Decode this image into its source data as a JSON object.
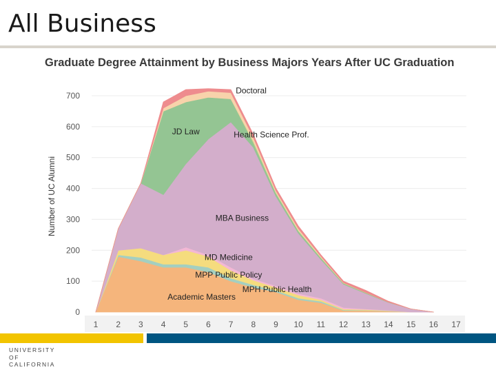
{
  "slide": {
    "title": "All Business",
    "logo": {
      "line1": "UNIVERSITY",
      "line2": "OF",
      "line3": "CALIFORNIA"
    },
    "colors": {
      "gold": "#f2c400",
      "blue": "#005581",
      "rule": "#d8d4cc"
    }
  },
  "chart_data": {
    "type": "area",
    "stacked": true,
    "title": "Graduate Degree Attainment by Business Majors Years After UC Graduation",
    "xlabel": "",
    "ylabel": "Number of UC Alumni",
    "x": [
      1,
      2,
      3,
      4,
      5,
      6,
      7,
      8,
      9,
      10,
      11,
      12,
      13,
      14,
      15,
      16,
      17
    ],
    "xlim": [
      1,
      17
    ],
    "ylim": [
      0,
      700
    ],
    "yticks": [
      0,
      100,
      200,
      300,
      400,
      500,
      600,
      700
    ],
    "grid": true,
    "series": [
      {
        "name": "Academic Masters",
        "color": "#f5b57c",
        "values": [
          0,
          180,
          165,
          145,
          145,
          130,
          100,
          80,
          65,
          40,
          30,
          5,
          5,
          3,
          0,
          0,
          null
        ]
      },
      {
        "name": "MPH Public Health",
        "color": "#a4cfc0",
        "values": [
          0,
          5,
          12,
          10,
          10,
          15,
          10,
          8,
          5,
          5,
          5,
          2,
          1,
          1,
          0,
          0,
          null
        ]
      },
      {
        "name": "MPP Public Policy",
        "color": "#f5dc7e",
        "values": [
          0,
          15,
          30,
          30,
          45,
          35,
          25,
          15,
          10,
          10,
          5,
          3,
          2,
          1,
          0,
          0,
          null
        ]
      },
      {
        "name": "MD Medicine",
        "color": "#f3b8d4",
        "values": [
          0,
          0,
          0,
          0,
          10,
          5,
          10,
          5,
          5,
          5,
          5,
          5,
          2,
          1,
          0,
          0,
          null
        ]
      },
      {
        "name": "MBA Business",
        "color": "#d3aecb",
        "values": [
          0,
          70,
          210,
          195,
          270,
          375,
          470,
          425,
          290,
          195,
          125,
          75,
          50,
          25,
          10,
          0,
          null
        ]
      },
      {
        "name": "JD Law",
        "color": "#94c593",
        "values": [
          0,
          0,
          0,
          270,
          200,
          135,
          75,
          15,
          10,
          7,
          5,
          3,
          2,
          1,
          0,
          0,
          null
        ]
      },
      {
        "name": "Health Science Prof.",
        "color": "#c5d48a",
        "values": [
          0,
          0,
          0,
          0,
          0,
          0,
          0,
          5,
          2,
          2,
          2,
          1,
          1,
          0,
          0,
          0,
          null
        ]
      },
      {
        "name": "Doctoral (light)",
        "color": "#f8d3ab",
        "values": [
          0,
          0,
          0,
          10,
          20,
          20,
          20,
          12,
          6,
          6,
          3,
          1,
          0,
          0,
          0,
          0,
          null
        ]
      },
      {
        "name": "Doctoral",
        "color": "#ee8c8e",
        "values": [
          0,
          0,
          0,
          20,
          20,
          8,
          10,
          10,
          8,
          8,
          5,
          5,
          7,
          3,
          0,
          0,
          null
        ]
      }
    ],
    "annotations": [
      {
        "text": "Doctoral",
        "x": 7.9,
        "y": 708
      },
      {
        "text": "JD Law",
        "x": 5.0,
        "y": 575
      },
      {
        "text": "Health Science Prof.",
        "x": 8.8,
        "y": 565
      },
      {
        "text": "MBA Business",
        "x": 7.5,
        "y": 295
      },
      {
        "text": "MD Medicine",
        "x": 6.9,
        "y": 168
      },
      {
        "text": "MPP Public Policy",
        "x": 6.9,
        "y": 112
      },
      {
        "text": "MPH Public Health",
        "x": 9.05,
        "y": 65
      },
      {
        "text": "Academic Masters",
        "x": 5.7,
        "y": 40
      }
    ]
  }
}
